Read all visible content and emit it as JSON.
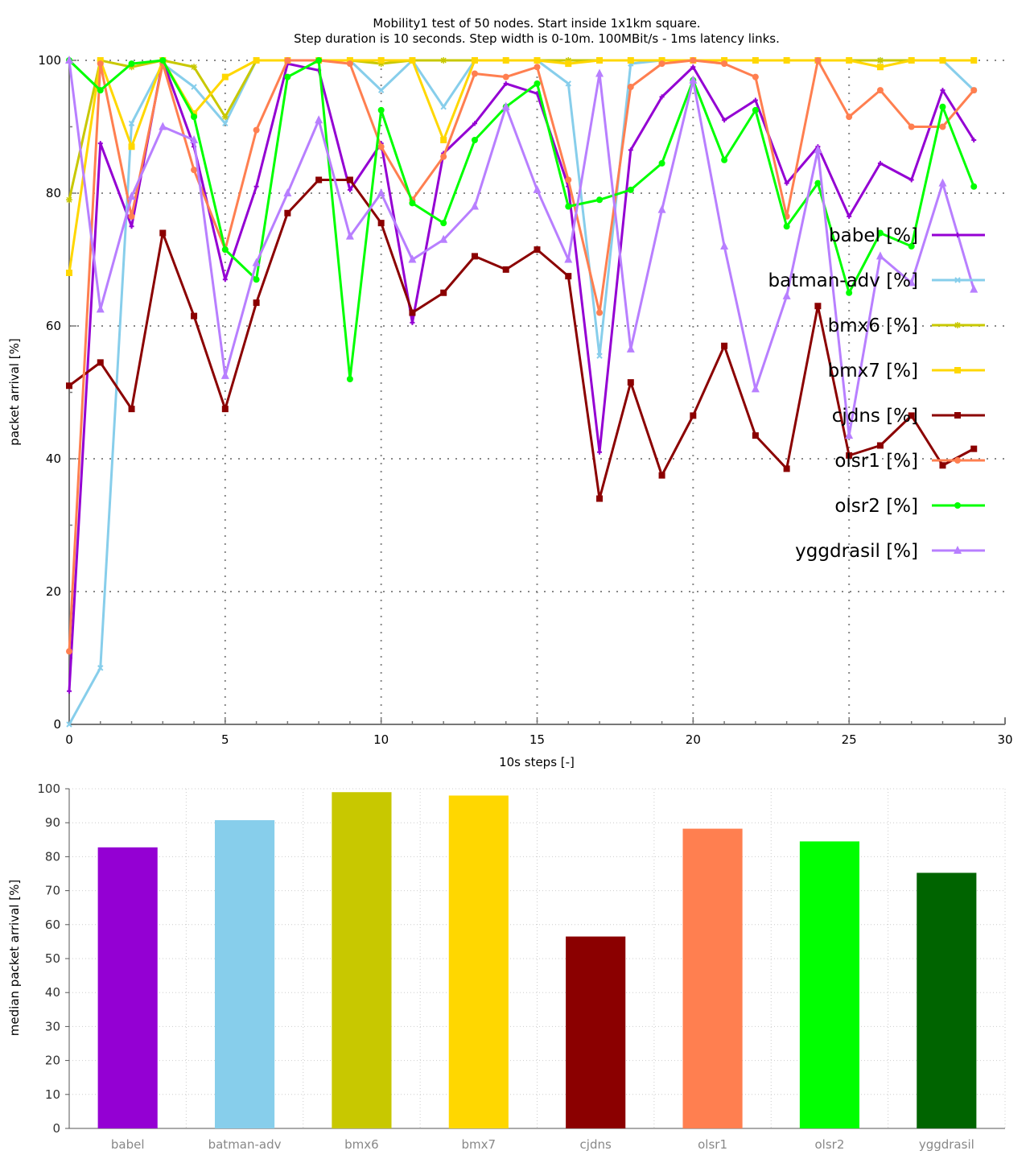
{
  "chart_data": [
    {
      "type": "line",
      "title": "Mobility1 test of 50 nodes. Start inside 1x1km square.",
      "subtitle": "Step duration is 10 seconds. Step width is 0-10m. 100MBit/s - 1ms latency links.",
      "xlabel": "10s steps [-]",
      "ylabel": "packet arrival [%]",
      "xlim": [
        0,
        30
      ],
      "ylim": [
        0,
        100
      ],
      "xticks": [
        "0",
        "5",
        "10",
        "15",
        "20",
        "25",
        "30"
      ],
      "yticks": [
        "0",
        "20",
        "40",
        "60",
        "80",
        "100"
      ],
      "grid": true,
      "legend_position": "right",
      "x": [
        0,
        1,
        2,
        3,
        4,
        5,
        6,
        7,
        8,
        9,
        10,
        11,
        12,
        13,
        14,
        15,
        16,
        17,
        18,
        19,
        20,
        21,
        22,
        23,
        24,
        25,
        26,
        27,
        28,
        29
      ],
      "series": [
        {
          "name": "babel [%]",
          "color": "#9400d3",
          "marker": "plus",
          "values": [
            5,
            87.5,
            75,
            100,
            87,
            67,
            81,
            99.5,
            98.5,
            80.5,
            87.5,
            60.5,
            86,
            90.5,
            96.5,
            95,
            81,
            41,
            86.5,
            94.5,
            99,
            91,
            94,
            81.5,
            87,
            76.5,
            84.5,
            82,
            95.5,
            88
          ]
        },
        {
          "name": "batman-adv [%]",
          "color": "#87ceeb",
          "marker": "x",
          "values": [
            0,
            8.5,
            90.5,
            99.5,
            96,
            90.5,
            100,
            100,
            100,
            100,
            95.5,
            100,
            93,
            100,
            100,
            100,
            96.5,
            55.5,
            99.5,
            100,
            100,
            100,
            100,
            100,
            100,
            100,
            100,
            100,
            100,
            95.5
          ]
        },
        {
          "name": "bmx6 [%]",
          "color": "#c8c800",
          "marker": "star",
          "values": [
            79,
            100,
            99,
            100,
            99,
            91.5,
            100,
            100,
            100,
            100,
            99.5,
            100,
            100,
            100,
            100,
            100,
            100,
            100,
            100,
            100,
            100,
            100,
            100,
            100,
            100,
            100,
            100,
            100,
            100,
            100
          ]
        },
        {
          "name": "bmx7 [%]",
          "color": "#ffd700",
          "marker": "square",
          "values": [
            68,
            100,
            87,
            100,
            92,
            97.5,
            100,
            100,
            100,
            100,
            100,
            100,
            88,
            100,
            100,
            100,
            99.5,
            100,
            100,
            100,
            100,
            100,
            100,
            100,
            100,
            100,
            99,
            100,
            100,
            100
          ]
        },
        {
          "name": "cjdns [%]",
          "color": "#8b0000",
          "marker": "square",
          "values": [
            51,
            54.5,
            47.5,
            74,
            61.5,
            47.5,
            63.5,
            77,
            82,
            82,
            75.5,
            62,
            65,
            70.5,
            68.5,
            71.5,
            67.5,
            34,
            51.5,
            37.5,
            46.5,
            57,
            43.5,
            38.5,
            63,
            40.5,
            42,
            46.5,
            39,
            41.5
          ]
        },
        {
          "name": "olsr1 [%]",
          "color": "#ff7f50",
          "marker": "circle",
          "values": [
            11,
            99.5,
            76.5,
            99.5,
            83.5,
            71.5,
            89.5,
            100,
            100,
            99.5,
            87,
            79,
            85.5,
            98,
            97.5,
            99,
            82,
            62,
            96,
            99.5,
            100,
            99.5,
            97.5,
            76.5,
            100,
            91.5,
            95.5,
            90,
            90,
            95.5
          ]
        },
        {
          "name": "olsr2 [%]",
          "color": "#00ff00",
          "marker": "circle",
          "values": [
            100,
            95.5,
            99.5,
            100,
            91.5,
            71.5,
            67,
            97.5,
            100,
            52,
            92.5,
            78.5,
            75.5,
            88,
            93,
            96.5,
            78,
            79,
            80.5,
            84.5,
            97,
            85,
            92.5,
            75,
            81.5,
            65,
            74,
            72,
            93,
            81
          ]
        },
        {
          "name": "yggdrasil [%]",
          "color": "#b87fff",
          "marker": "triangle",
          "values": [
            100,
            62.5,
            79.5,
            90,
            88,
            52.5,
            69.5,
            80,
            91,
            73.5,
            80,
            70,
            73,
            78,
            93,
            80.5,
            70,
            98,
            56.5,
            77.5,
            97,
            72,
            50.5,
            64.5,
            86.5,
            43.5,
            70.5,
            66.5,
            81.5,
            65.5
          ]
        }
      ]
    },
    {
      "type": "bar",
      "ylabel": "median packet arrival [%]",
      "ylim": [
        0,
        100
      ],
      "yticks": [
        "0",
        "10",
        "20",
        "30",
        "40",
        "50",
        "60",
        "70",
        "80",
        "90",
        "100"
      ],
      "grid": true,
      "categories": [
        "babel",
        "batman-adv",
        "bmx6",
        "bmx7",
        "cjdns",
        "olsr1",
        "olsr2",
        "yggdrasil"
      ],
      "values": [
        82.75,
        90.75,
        99,
        98,
        56.5,
        88.25,
        84.5,
        75.25
      ],
      "colors": [
        "#9400d3",
        "#87ceeb",
        "#c8c800",
        "#ffd700",
        "#8b0000",
        "#ff7f50",
        "#00ff00",
        "#006400"
      ]
    }
  ]
}
